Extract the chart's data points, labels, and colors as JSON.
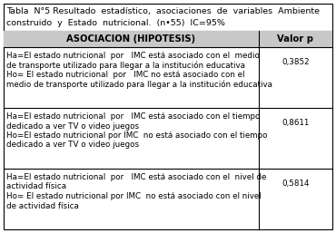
{
  "title_line1": "Tabla  N°5 Resultado  estadístico,  asociaciones  de  variables  Ambiente",
  "title_line2": "construido  y  Estado  nutricional.  (n•55)  IC=95%",
  "col1_header": "ASOCIACION (HIPOTESIS)",
  "col2_header": "Valor p",
  "rows": [
    {
      "lines": [
        "Ha=El estado nutricional  por   IMC está asociado con el  medio",
        "de transporte utilizado para llegar a la institución educativa",
        "Ho= El estado nutricional  por   IMC no está asociado con el",
        "medio de transporte utilizado para llegar a la institución educativa"
      ],
      "value": "0,3852"
    },
    {
      "lines": [
        "Ha=El estado nutricional  por   IMC está asociado con el tiempo",
        "dedicado a ver TV o video juegos",
        "Ho=El estado nutricional por IMC  no está asociado con el tiempo",
        "dedicado a ver TV o video juegos"
      ],
      "value": "0,8611"
    },
    {
      "lines": [
        "Ha=El estado nutricional  por   IMC está asociado con el  nivel de",
        "actividad física",
        "Ho= El estado nutricional por IMC  no está asociado con el nivel",
        "de actividad física"
      ],
      "value": "0,5814"
    }
  ],
  "header_bg": "#c8c8c8",
  "border_color": "#000000",
  "text_color": "#000000",
  "title_fontsize": 6.8,
  "header_fontsize": 7.2,
  "body_fontsize": 6.3
}
